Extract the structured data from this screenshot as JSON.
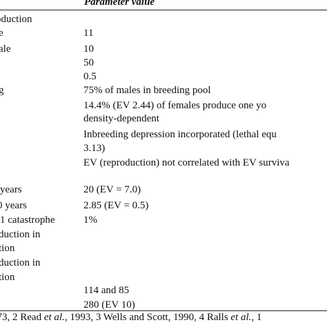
{
  "header": {
    "param_value": "Parameter value"
  },
  "rows": [
    {
      "left": "oduction",
      "right": ""
    },
    {
      "left": "e",
      "right": "11"
    },
    {
      "left": "ale",
      "right": "10"
    },
    {
      "left": "",
      "right": "50"
    },
    {
      "left": "",
      "right": "0.5"
    },
    {
      "left": "g",
      "right": "75% of males in breeding pool"
    },
    {
      "left": "",
      "right": "14.4% (EV 2.44) of females produce one yo"
    },
    {
      "left": "",
      "right": "density-dependent"
    },
    {
      "left": "",
      "right": "Inbreeding depression incorporated (lethal equ"
    },
    {
      "left": "",
      "right": "3.13)"
    },
    {
      "left": "",
      "right": "EV (reproduction) not correlated with EV surviva"
    },
    {
      "left": "",
      "right": ""
    },
    {
      "left": "years",
      "right": "20 (EV = 7.0)"
    },
    {
      "left": "0 years",
      "right": "2.85 (EV = 0.5)"
    },
    {
      "left": "1 catastrophe",
      "right": "1%"
    },
    {
      "left": "duction in",
      "right": ""
    },
    {
      "left": "tion",
      "right": ""
    },
    {
      "left": "duction in",
      "right": ""
    },
    {
      "left": "tion",
      "right": ""
    },
    {
      "left": "",
      "right": "114 and 85"
    },
    {
      "left": "",
      "right": "280 (EV 10)"
    }
  ],
  "footnote": "973, 2 Read et al., 1993, 3 Wells and Scott, 1990, 4 Ralls et al., 1"
}
